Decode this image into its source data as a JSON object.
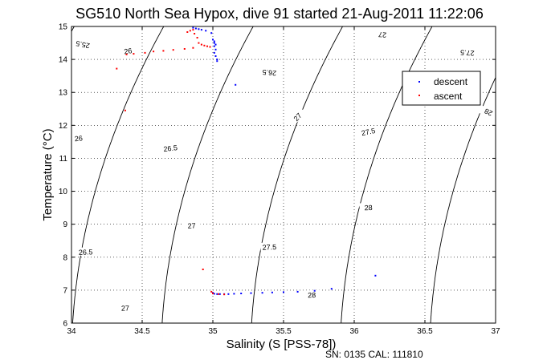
{
  "chart_data": {
    "type": "scatter",
    "title": "SG510 North Sea Hypox, dive 91 started 21-Aug-2011 11:22:06",
    "xlabel": "Salinity (S [PSS-78])",
    "ylabel": "Temperature (°C)",
    "xlim": [
      34,
      37
    ],
    "ylim": [
      6,
      15
    ],
    "x_ticks": [
      "34",
      "34.5",
      "35",
      "35.5",
      "36",
      "36.5",
      "37"
    ],
    "y_ticks": [
      "6",
      "7",
      "8",
      "9",
      "10",
      "11",
      "12",
      "13",
      "14",
      "15"
    ],
    "grid": true,
    "legend_position": "top-right",
    "contour_levels": [
      {
        "label": "25.5",
        "value": 25.5,
        "label_at": [
          34.08,
          14.45
        ]
      },
      {
        "label": "26",
        "value": 26.0,
        "label_at": [
          34.4,
          14.25
        ]
      },
      {
        "label": "26.5",
        "value": 26.5,
        "label_at": [
          35.4,
          13.6
        ]
      },
      {
        "label": "27",
        "value": 27.0,
        "label_at": [
          36.2,
          14.75
        ]
      },
      {
        "label": "27.5",
        "value": 27.5,
        "label_at": [
          36.8,
          14.2
        ]
      },
      {
        "label": "26",
        "value": 26.0,
        "label_at": [
          34.05,
          11.6
        ]
      },
      {
        "label": "26.5",
        "value": 26.5,
        "label_at": [
          34.7,
          11.3
        ]
      },
      {
        "label": "27",
        "value": 27.0,
        "label_at": [
          35.6,
          12.25
        ]
      },
      {
        "label": "27.5",
        "value": 27.5,
        "label_at": [
          36.1,
          11.8
        ]
      },
      {
        "label": "28",
        "value": 28.0,
        "label_at": [
          36.95,
          12.4
        ]
      },
      {
        "label": "26.5",
        "value": 26.5,
        "label_at": [
          34.1,
          8.15
        ]
      },
      {
        "label": "27",
        "value": 27.0,
        "label_at": [
          34.85,
          8.95
        ]
      },
      {
        "label": "27.5",
        "value": 27.5,
        "label_at": [
          35.4,
          8.3
        ]
      },
      {
        "label": "28",
        "value": 28.0,
        "label_at": [
          36.1,
          9.5
        ]
      },
      {
        "label": "27",
        "value": 27.0,
        "label_at": [
          34.38,
          6.45
        ]
      },
      {
        "label": "28",
        "value": 28.0,
        "label_at": [
          35.7,
          6.85
        ]
      }
    ],
    "series": [
      {
        "name": "descent",
        "color": "#0000ff",
        "points": [
          [
            34.86,
            14.96
          ],
          [
            34.88,
            14.94
          ],
          [
            34.9,
            14.92
          ],
          [
            34.92,
            14.9
          ],
          [
            34.95,
            14.87
          ],
          [
            34.99,
            14.8
          ],
          [
            35.0,
            14.6
          ],
          [
            35.01,
            14.55
          ],
          [
            35.01,
            14.5
          ],
          [
            35.02,
            14.45
          ],
          [
            35.01,
            14.4
          ],
          [
            35.02,
            14.3
          ],
          [
            35.01,
            14.2
          ],
          [
            35.02,
            14.1
          ],
          [
            35.03,
            14.0
          ],
          [
            35.03,
            13.95
          ],
          [
            35.16,
            13.23
          ],
          [
            35.0,
            6.92
          ],
          [
            35.01,
            6.89
          ],
          [
            35.03,
            6.88
          ],
          [
            35.05,
            6.88
          ],
          [
            35.08,
            6.88
          ],
          [
            35.11,
            6.88
          ],
          [
            35.15,
            6.89
          ],
          [
            35.2,
            6.9
          ],
          [
            35.27,
            6.91
          ],
          [
            35.35,
            6.92
          ],
          [
            35.42,
            6.93
          ],
          [
            35.5,
            6.94
          ],
          [
            35.6,
            6.95
          ],
          [
            35.72,
            6.98
          ],
          [
            35.84,
            7.04
          ],
          [
            36.15,
            7.44
          ]
        ]
      },
      {
        "name": "ascent",
        "color": "#ff0000",
        "points": [
          [
            34.82,
            14.83
          ],
          [
            34.84,
            14.87
          ],
          [
            34.86,
            14.9
          ],
          [
            34.87,
            14.78
          ],
          [
            34.89,
            14.66
          ],
          [
            34.9,
            14.5
          ],
          [
            34.92,
            14.45
          ],
          [
            34.94,
            14.42
          ],
          [
            34.96,
            14.4
          ],
          [
            34.98,
            14.38
          ],
          [
            34.86,
            14.35
          ],
          [
            34.8,
            14.32
          ],
          [
            34.72,
            14.29
          ],
          [
            34.65,
            14.26
          ],
          [
            34.58,
            14.24
          ],
          [
            34.52,
            14.2
          ],
          [
            34.44,
            14.17
          ],
          [
            34.39,
            14.15
          ],
          [
            34.32,
            13.72
          ],
          [
            34.38,
            12.45
          ],
          [
            34.93,
            7.63
          ],
          [
            34.99,
            6.95
          ],
          [
            35.0,
            6.9
          ],
          [
            35.04,
            6.88
          ],
          [
            35.08,
            6.87
          ]
        ]
      }
    ]
  },
  "footer": "SN: 0135  CAL: 111810"
}
